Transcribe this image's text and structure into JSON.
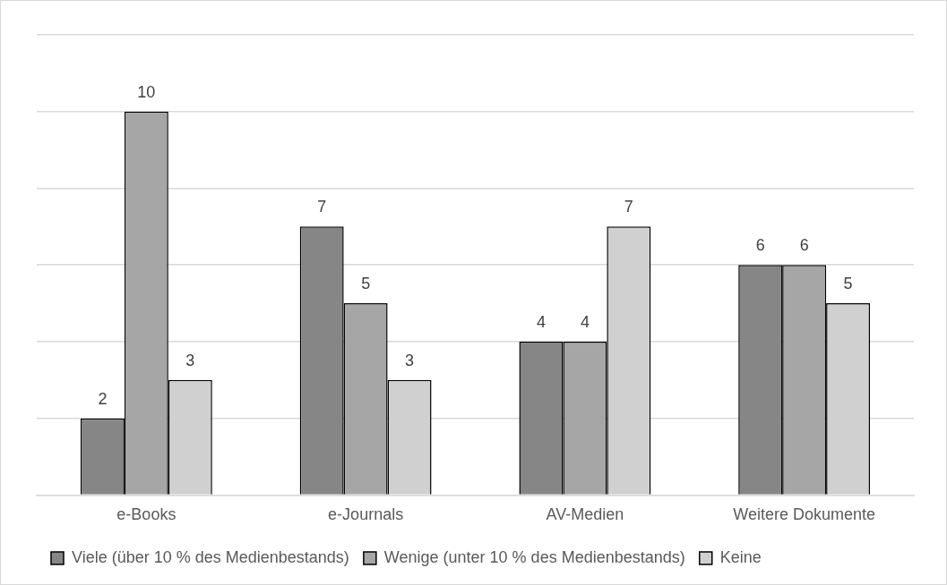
{
  "chart_data": {
    "type": "bar",
    "categories": [
      "e-Books",
      "e-Journals",
      "AV-Medien",
      "Weitere Dokumente"
    ],
    "series": [
      {
        "name": "Viele (über 10 % des Medienbestands)",
        "color": "#868686",
        "values": [
          2,
          7,
          4,
          6
        ]
      },
      {
        "name": "Wenige (unter 10 % des Medienbestands)",
        "color": "#a6a6a6",
        "values": [
          10,
          5,
          4,
          6
        ]
      },
      {
        "name": "Keine",
        "color": "#d0d0d0",
        "values": [
          3,
          3,
          7,
          5
        ]
      }
    ],
    "grid": "y",
    "legend": "bottom",
    "data_labels": true,
    "tick_labels": "x"
  }
}
